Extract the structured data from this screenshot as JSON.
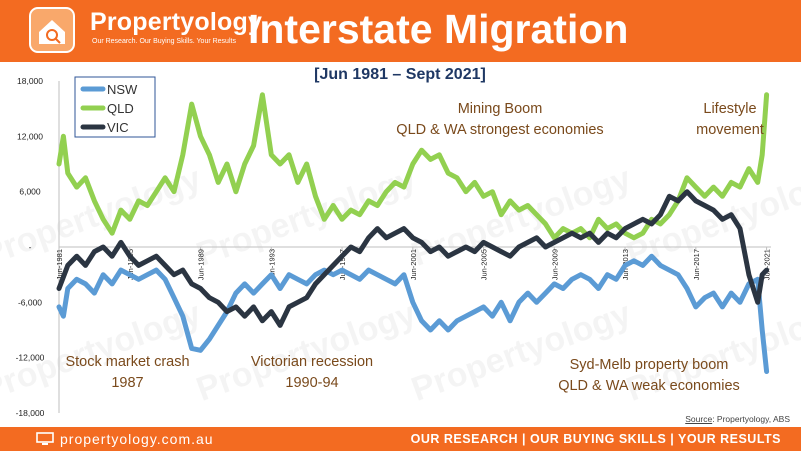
{
  "header": {
    "brand": "Propertyology",
    "tagline": "Our Research. Our Buying Skills. Your Results",
    "title": "Interstate Migration"
  },
  "footer": {
    "site": "propertyology.com.au",
    "slogan": "OUR RESEARCH | OUR BUYING SKILLS | YOUR RESULTS"
  },
  "source": {
    "label": "Source",
    "text": ": Propertyology, ABS"
  },
  "colors": {
    "orange": "#f36b21",
    "nsw": "#5b9bd5",
    "qld": "#92d050",
    "vic": "#2b3542"
  },
  "chart_data": {
    "type": "line",
    "subtitle": "[Jun 1981 – Sept 2021]",
    "ylim": [
      -18000,
      18000
    ],
    "yticks": [
      18000,
      12000,
      6000,
      0,
      -6000,
      -12000,
      -18000
    ],
    "ytick_labels": [
      "18,000",
      "12,000",
      "6,000",
      "-",
      "-6,000",
      "-12,000",
      "-18,000"
    ],
    "xlim": [
      1981.5,
      2021.75
    ],
    "xticks": [
      {
        "x": 1981.5,
        "label": "Jun-1981"
      },
      {
        "x": 1985.5,
        "label": "Jun-1985"
      },
      {
        "x": 1989.5,
        "label": "Jun-1989"
      },
      {
        "x": 1993.5,
        "label": "Jun-1993"
      },
      {
        "x": 1997.5,
        "label": "Jun-1997"
      },
      {
        "x": 2001.5,
        "label": "Jun-2001"
      },
      {
        "x": 2005.5,
        "label": "Jun-2005"
      },
      {
        "x": 2009.5,
        "label": "Jun-2009"
      },
      {
        "x": 2013.5,
        "label": "Jun-2013"
      },
      {
        "x": 2017.5,
        "label": "Jun-2017"
      },
      {
        "x": 2021.5,
        "label": "Jun-2021"
      }
    ],
    "legend": {
      "position": "top-left",
      "entries": [
        "NSW",
        "QLD",
        "VIC"
      ]
    },
    "grid": false,
    "series": [
      {
        "name": "NSW",
        "color": "#5b9bd5",
        "points": [
          [
            1981.5,
            -6500
          ],
          [
            1981.75,
            -7500
          ],
          [
            1982,
            -4500
          ],
          [
            1982.5,
            -3500
          ],
          [
            1983,
            -4000
          ],
          [
            1983.5,
            -5000
          ],
          [
            1984,
            -3000
          ],
          [
            1984.5,
            -4000
          ],
          [
            1985,
            -2500
          ],
          [
            1985.5,
            -3000
          ],
          [
            1986,
            -3500
          ],
          [
            1986.5,
            -3000
          ],
          [
            1987,
            -2500
          ],
          [
            1987.5,
            -3500
          ],
          [
            1988,
            -5500
          ],
          [
            1988.5,
            -7500
          ],
          [
            1989,
            -11000
          ],
          [
            1989.5,
            -11200
          ],
          [
            1990,
            -10000
          ],
          [
            1990.5,
            -8500
          ],
          [
            1991,
            -7000
          ],
          [
            1991.5,
            -5000
          ],
          [
            1992,
            -4000
          ],
          [
            1992.5,
            -5000
          ],
          [
            1993,
            -4000
          ],
          [
            1993.5,
            -3000
          ],
          [
            1994,
            -4500
          ],
          [
            1994.5,
            -3000
          ],
          [
            1995,
            -3500
          ],
          [
            1995.5,
            -4000
          ],
          [
            1996,
            -3000
          ],
          [
            1996.5,
            -2500
          ],
          [
            1997,
            -3000
          ],
          [
            1997.5,
            -2500
          ],
          [
            1998,
            -3000
          ],
          [
            1998.5,
            -3500
          ],
          [
            1999,
            -2500
          ],
          [
            1999.5,
            -3000
          ],
          [
            2000,
            -3500
          ],
          [
            2000.5,
            -4000
          ],
          [
            2001,
            -3000
          ],
          [
            2001.5,
            -6000
          ],
          [
            2002,
            -8000
          ],
          [
            2002.5,
            -9000
          ],
          [
            2003,
            -8000
          ],
          [
            2003.5,
            -9000
          ],
          [
            2004,
            -8000
          ],
          [
            2004.5,
            -7500
          ],
          [
            2005,
            -7000
          ],
          [
            2005.5,
            -6500
          ],
          [
            2006,
            -7500
          ],
          [
            2006.5,
            -6000
          ],
          [
            2007,
            -8000
          ],
          [
            2007.5,
            -6000
          ],
          [
            2008,
            -5000
          ],
          [
            2008.5,
            -6000
          ],
          [
            2009,
            -5000
          ],
          [
            2009.5,
            -4000
          ],
          [
            2010,
            -4500
          ],
          [
            2010.5,
            -3500
          ],
          [
            2011,
            -3000
          ],
          [
            2011.5,
            -3500
          ],
          [
            2012,
            -4500
          ],
          [
            2012.5,
            -3000
          ],
          [
            2013,
            -3500
          ],
          [
            2013.5,
            -2000
          ],
          [
            2014,
            -1500
          ],
          [
            2014.5,
            -2000
          ],
          [
            2015,
            -1000
          ],
          [
            2015.5,
            -2000
          ],
          [
            2016,
            -2500
          ],
          [
            2016.5,
            -3000
          ],
          [
            2017,
            -4500
          ],
          [
            2017.5,
            -6500
          ],
          [
            2018,
            -5500
          ],
          [
            2018.5,
            -5000
          ],
          [
            2019,
            -6500
          ],
          [
            2019.5,
            -5000
          ],
          [
            2020,
            -6000
          ],
          [
            2020.5,
            -4000
          ],
          [
            2021,
            -3500
          ],
          [
            2021.25,
            -9000
          ],
          [
            2021.5,
            -13500
          ]
        ]
      },
      {
        "name": "QLD",
        "color": "#92d050",
        "points": [
          [
            1981.5,
            9000
          ],
          [
            1981.75,
            12000
          ],
          [
            1982,
            8000
          ],
          [
            1982.5,
            6500
          ],
          [
            1983,
            7500
          ],
          [
            1983.5,
            5000
          ],
          [
            1984,
            3000
          ],
          [
            1984.5,
            1500
          ],
          [
            1985,
            4000
          ],
          [
            1985.5,
            3000
          ],
          [
            1986,
            5000
          ],
          [
            1986.5,
            4500
          ],
          [
            1987,
            6000
          ],
          [
            1987.5,
            7500
          ],
          [
            1988,
            6000
          ],
          [
            1988.5,
            10000
          ],
          [
            1989,
            15500
          ],
          [
            1989.5,
            12000
          ],
          [
            1990,
            10000
          ],
          [
            1990.5,
            7000
          ],
          [
            1991,
            9000
          ],
          [
            1991.5,
            6000
          ],
          [
            1992,
            9000
          ],
          [
            1992.5,
            11000
          ],
          [
            1993,
            16500
          ],
          [
            1993.5,
            10000
          ],
          [
            1994,
            9000
          ],
          [
            1994.5,
            10000
          ],
          [
            1995,
            7000
          ],
          [
            1995.5,
            9000
          ],
          [
            1996,
            5500
          ],
          [
            1996.5,
            3000
          ],
          [
            1997,
            4500
          ],
          [
            1997.5,
            3000
          ],
          [
            1998,
            4000
          ],
          [
            1998.5,
            3500
          ],
          [
            1999,
            5000
          ],
          [
            1999.5,
            4500
          ],
          [
            2000,
            6000
          ],
          [
            2000.5,
            7000
          ],
          [
            2001,
            6500
          ],
          [
            2001.5,
            9000
          ],
          [
            2002,
            10500
          ],
          [
            2002.5,
            9500
          ],
          [
            2003,
            10000
          ],
          [
            2003.5,
            8000
          ],
          [
            2004,
            7500
          ],
          [
            2004.5,
            6000
          ],
          [
            2005,
            7000
          ],
          [
            2005.5,
            5500
          ],
          [
            2006,
            6000
          ],
          [
            2006.5,
            3500
          ],
          [
            2007,
            5000
          ],
          [
            2007.5,
            4000
          ],
          [
            2008,
            4500
          ],
          [
            2008.5,
            3500
          ],
          [
            2009,
            2500
          ],
          [
            2009.5,
            1000
          ],
          [
            2010,
            2000
          ],
          [
            2010.5,
            1500
          ],
          [
            2011,
            2000
          ],
          [
            2011.5,
            1000
          ],
          [
            2012,
            3000
          ],
          [
            2012.5,
            2000
          ],
          [
            2013,
            2500
          ],
          [
            2013.5,
            1500
          ],
          [
            2014,
            1000
          ],
          [
            2014.5,
            1500
          ],
          [
            2015,
            3000
          ],
          [
            2015.5,
            2500
          ],
          [
            2016,
            3500
          ],
          [
            2016.5,
            5000
          ],
          [
            2017,
            7500
          ],
          [
            2017.5,
            6500
          ],
          [
            2018,
            5500
          ],
          [
            2018.5,
            6500
          ],
          [
            2019,
            5500
          ],
          [
            2019.5,
            7000
          ],
          [
            2020,
            6500
          ],
          [
            2020.5,
            8500
          ],
          [
            2021,
            7000
          ],
          [
            2021.25,
            10000
          ],
          [
            2021.5,
            16500
          ]
        ]
      },
      {
        "name": "VIC",
        "color": "#2b3542",
        "points": [
          [
            1981.5,
            -4500
          ],
          [
            1982,
            -2000
          ],
          [
            1982.5,
            -1000
          ],
          [
            1983,
            -2000
          ],
          [
            1983.5,
            -500
          ],
          [
            1984,
            0
          ],
          [
            1984.5,
            -1000
          ],
          [
            1985,
            500
          ],
          [
            1985.5,
            -1000
          ],
          [
            1986,
            -2000
          ],
          [
            1986.5,
            -1500
          ],
          [
            1987,
            -1000
          ],
          [
            1987.5,
            -2000
          ],
          [
            1988,
            -3000
          ],
          [
            1988.5,
            -2500
          ],
          [
            1989,
            -4000
          ],
          [
            1989.5,
            -4500
          ],
          [
            1990,
            -5500
          ],
          [
            1990.5,
            -6000
          ],
          [
            1991,
            -7000
          ],
          [
            1991.5,
            -6500
          ],
          [
            1992,
            -7500
          ],
          [
            1992.5,
            -6500
          ],
          [
            1993,
            -8000
          ],
          [
            1993.5,
            -7000
          ],
          [
            1994,
            -8500
          ],
          [
            1994.5,
            -6500
          ],
          [
            1995,
            -6000
          ],
          [
            1995.5,
            -5500
          ],
          [
            1996,
            -4000
          ],
          [
            1996.5,
            -3000
          ],
          [
            1997,
            -2000
          ],
          [
            1997.5,
            -1000
          ],
          [
            1998,
            0
          ],
          [
            1998.5,
            -500
          ],
          [
            1999,
            1000
          ],
          [
            1999.5,
            2000
          ],
          [
            2000,
            1000
          ],
          [
            2000.5,
            1500
          ],
          [
            2001,
            2000
          ],
          [
            2001.5,
            1000
          ],
          [
            2002,
            500
          ],
          [
            2002.5,
            -500
          ],
          [
            2003,
            0
          ],
          [
            2003.5,
            -1000
          ],
          [
            2004,
            -500
          ],
          [
            2004.5,
            0
          ],
          [
            2005,
            -500
          ],
          [
            2005.5,
            500
          ],
          [
            2006,
            0
          ],
          [
            2006.5,
            -500
          ],
          [
            2007,
            -1000
          ],
          [
            2007.5,
            0
          ],
          [
            2008,
            500
          ],
          [
            2008.5,
            1000
          ],
          [
            2009,
            0
          ],
          [
            2009.5,
            500
          ],
          [
            2010,
            1000
          ],
          [
            2010.5,
            1500
          ],
          [
            2011,
            1000
          ],
          [
            2011.5,
            1500
          ],
          [
            2012,
            500
          ],
          [
            2012.5,
            1500
          ],
          [
            2013,
            1000
          ],
          [
            2013.5,
            2000
          ],
          [
            2014,
            2500
          ],
          [
            2014.5,
            3000
          ],
          [
            2015,
            2500
          ],
          [
            2015.5,
            3500
          ],
          [
            2016,
            5500
          ],
          [
            2016.5,
            5000
          ],
          [
            2017,
            6000
          ],
          [
            2017.5,
            5000
          ],
          [
            2018,
            4500
          ],
          [
            2018.5,
            4000
          ],
          [
            2019,
            3000
          ],
          [
            2019.5,
            3500
          ],
          [
            2020,
            2000
          ],
          [
            2020.5,
            -3000
          ],
          [
            2021,
            -6000
          ],
          [
            2021.25,
            -3000
          ],
          [
            2021.5,
            -2500
          ]
        ]
      }
    ],
    "annotations": [
      {
        "id": "mining",
        "lines": [
          "Mining Boom",
          "QLD & WA strongest economies"
        ]
      },
      {
        "id": "lifestyle",
        "lines": [
          "Lifestyle",
          "movement"
        ]
      },
      {
        "id": "crash",
        "lines": [
          "Stock market crash",
          "1987"
        ]
      },
      {
        "id": "recession",
        "lines": [
          "Victorian recession",
          "1990-94"
        ]
      },
      {
        "id": "sydmelb",
        "lines": [
          "Syd-Melb property boom",
          "QLD & WA weak economies"
        ]
      }
    ]
  }
}
